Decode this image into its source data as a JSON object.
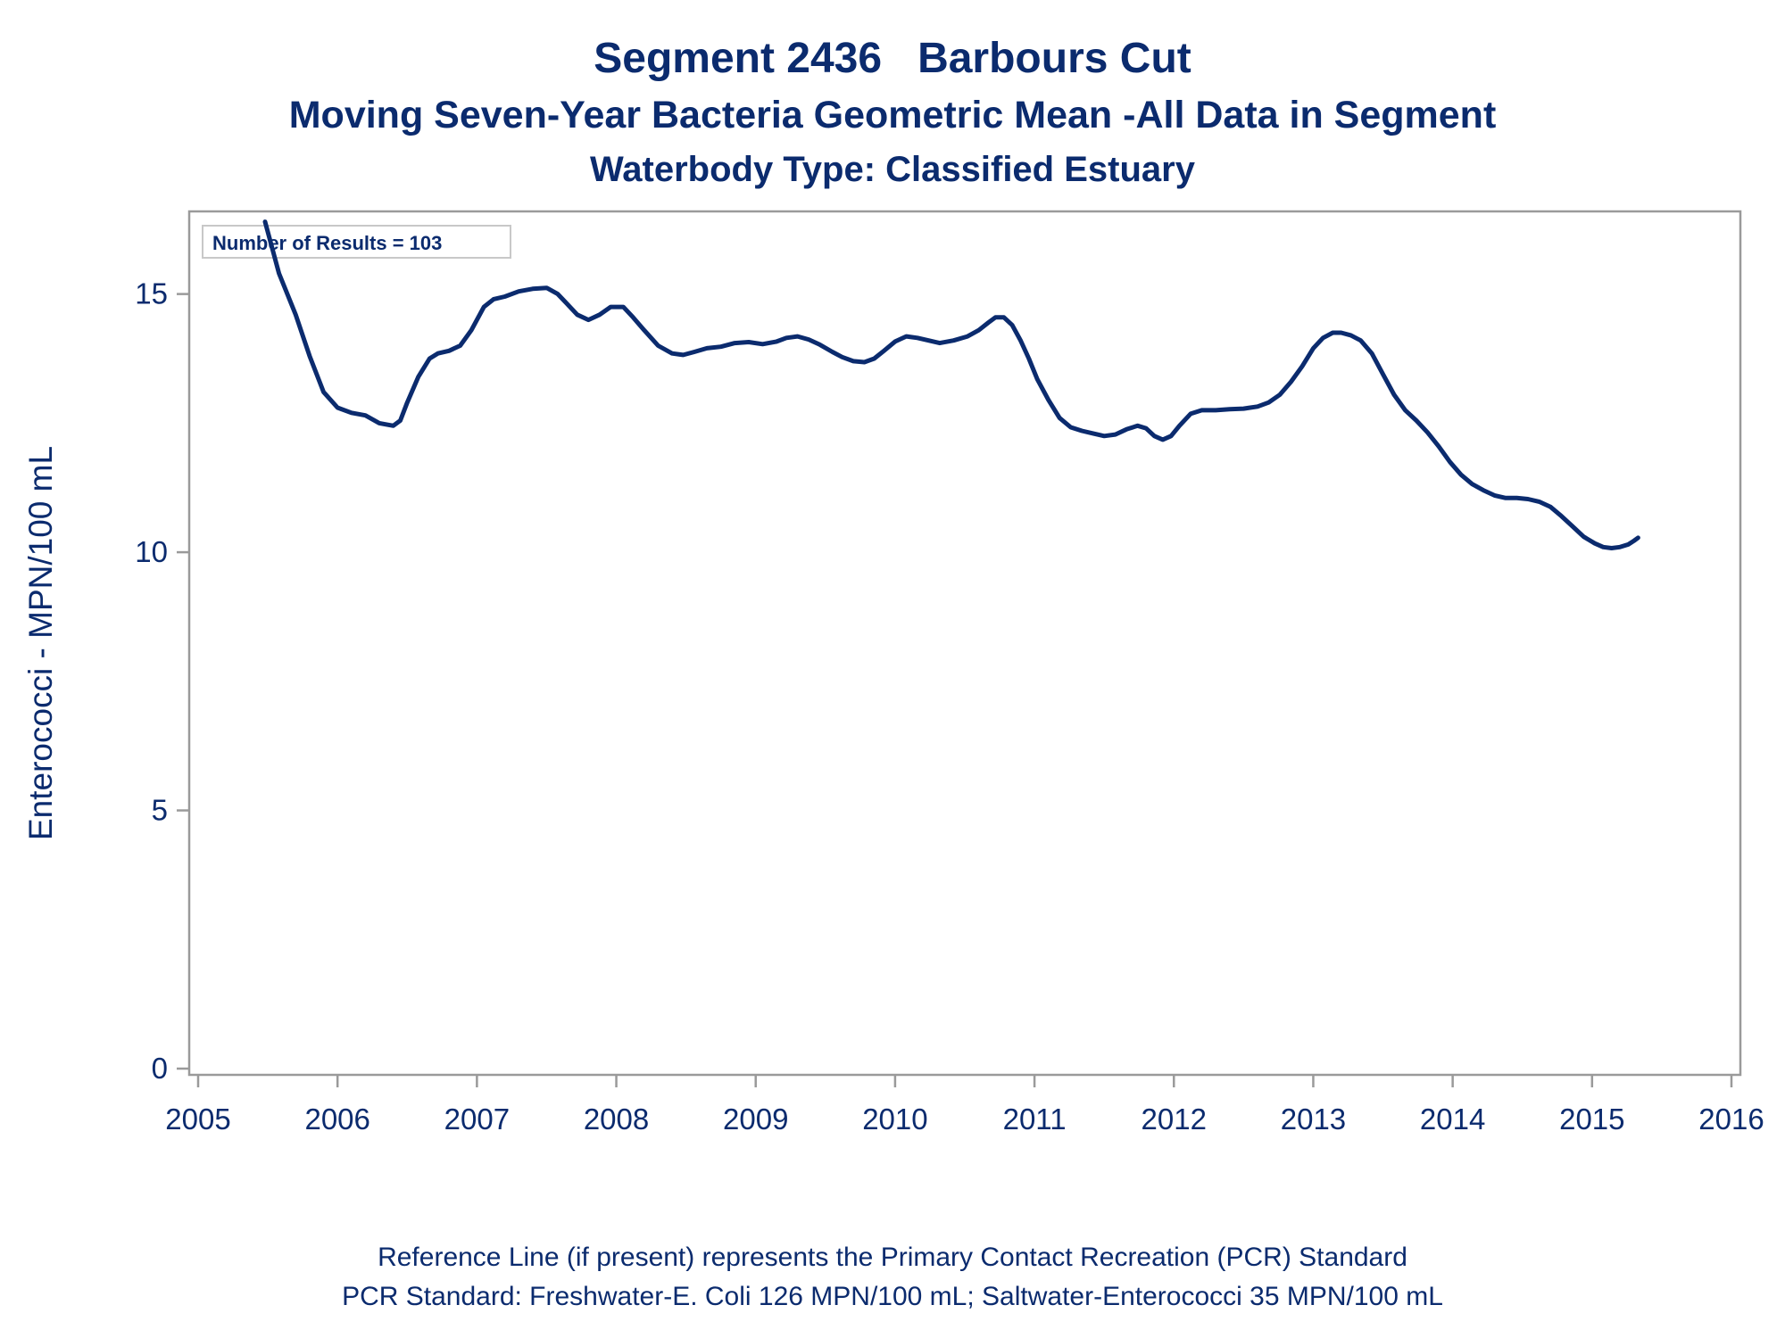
{
  "titles": {
    "line1": "Segment 2436   Barbours Cut",
    "line2": "Moving Seven-Year Bacteria Geometric Mean -All Data in Segment",
    "line3": "Waterbody Type: Classified Estuary"
  },
  "annotation": "Number of Results = 103",
  "footnotes": {
    "line1": "Reference Line (if present) represents the Primary Contact Recreation (PCR) Standard",
    "line2": "PCR Standard: Freshwater-E. Coli 126 MPN/100 mL; Saltwater-Enterococci 35 MPN/100 mL"
  },
  "colors": {
    "line": "#0b2b6e",
    "frame": "#9a9a9a",
    "text": "#0b2b6e"
  },
  "chart_data": {
    "type": "line",
    "ylabel": "Enterococci - MPN/100 mL",
    "xlabel": "",
    "xlim": [
      2005,
      2016
    ],
    "ylim": [
      0,
      16.6
    ],
    "x_ticks": [
      2005,
      2006,
      2007,
      2008,
      2009,
      2010,
      2011,
      2012,
      2013,
      2014,
      2015,
      2016
    ],
    "y_ticks": [
      0,
      5,
      10,
      15
    ],
    "grid": false,
    "series": [
      {
        "x": [
          2005.48,
          2005.58,
          2005.7,
          2005.8,
          2005.9,
          2006.0,
          2006.1,
          2006.2,
          2006.3,
          2006.4,
          2006.45,
          2006.5,
          2006.58,
          2006.66,
          2006.72,
          2006.8,
          2006.88,
          2006.96,
          2007.05,
          2007.12,
          2007.2,
          2007.3,
          2007.4,
          2007.5,
          2007.58,
          2007.65,
          2007.72,
          2007.8,
          2007.88,
          2007.96,
          2008.05,
          2008.12,
          2008.2,
          2008.3,
          2008.4,
          2008.48,
          2008.56,
          2008.65,
          2008.75,
          2008.85,
          2008.95,
          2009.05,
          2009.15,
          2009.22,
          2009.3,
          2009.38,
          2009.46,
          2009.55,
          2009.62,
          2009.7,
          2009.78,
          2009.85,
          2009.92,
          2010.0,
          2010.08,
          2010.16,
          2010.24,
          2010.32,
          2010.42,
          2010.52,
          2010.6,
          2010.67,
          2010.72,
          2010.78,
          2010.84,
          2010.9,
          2010.96,
          2011.02,
          2011.1,
          2011.18,
          2011.26,
          2011.34,
          2011.42,
          2011.5,
          2011.58,
          2011.66,
          2011.74,
          2011.8,
          2011.86,
          2011.92,
          2011.98,
          2012.04,
          2012.12,
          2012.2,
          2012.3,
          2012.4,
          2012.5,
          2012.6,
          2012.68,
          2012.76,
          2012.84,
          2012.92,
          2013.0,
          2013.07,
          2013.14,
          2013.2,
          2013.27,
          2013.34,
          2013.42,
          2013.5,
          2013.58,
          2013.66,
          2013.74,
          2013.82,
          2013.9,
          2013.98,
          2014.06,
          2014.14,
          2014.22,
          2014.3,
          2014.38,
          2014.46,
          2014.54,
          2014.62,
          2014.7,
          2014.78,
          2014.86,
          2014.94,
          2015.02,
          2015.08,
          2015.14,
          2015.2,
          2015.26,
          2015.3,
          2015.33
        ],
        "values": [
          16.4,
          15.4,
          14.6,
          13.8,
          13.1,
          12.8,
          12.7,
          12.65,
          12.5,
          12.45,
          12.55,
          12.9,
          13.4,
          13.75,
          13.85,
          13.9,
          14.0,
          14.3,
          14.75,
          14.9,
          14.95,
          15.05,
          15.1,
          15.12,
          15.0,
          14.8,
          14.6,
          14.5,
          14.6,
          14.75,
          14.75,
          14.55,
          14.3,
          14.0,
          13.85,
          13.82,
          13.88,
          13.95,
          13.98,
          14.05,
          14.07,
          14.03,
          14.08,
          14.15,
          14.18,
          14.12,
          14.02,
          13.88,
          13.78,
          13.7,
          13.68,
          13.75,
          13.9,
          14.08,
          14.18,
          14.15,
          14.1,
          14.05,
          14.1,
          14.18,
          14.3,
          14.45,
          14.55,
          14.55,
          14.4,
          14.1,
          13.75,
          13.35,
          12.95,
          12.6,
          12.42,
          12.35,
          12.3,
          12.25,
          12.28,
          12.38,
          12.45,
          12.4,
          12.25,
          12.18,
          12.25,
          12.45,
          12.68,
          12.75,
          12.75,
          12.77,
          12.78,
          12.82,
          12.9,
          13.05,
          13.3,
          13.6,
          13.95,
          14.15,
          14.25,
          14.25,
          14.2,
          14.1,
          13.85,
          13.45,
          13.05,
          12.75,
          12.55,
          12.32,
          12.05,
          11.75,
          11.5,
          11.32,
          11.2,
          11.1,
          11.05,
          11.05,
          11.03,
          10.98,
          10.88,
          10.7,
          10.5,
          10.3,
          10.17,
          10.1,
          10.08,
          10.1,
          10.15,
          10.22,
          10.28
        ]
      }
    ]
  }
}
